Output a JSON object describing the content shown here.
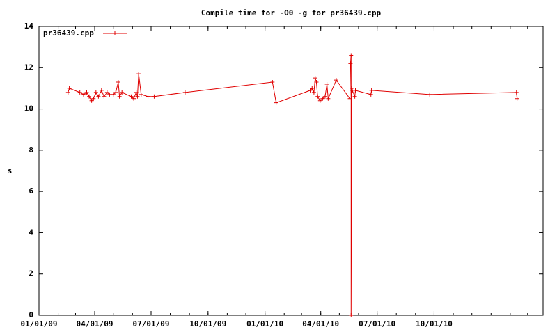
{
  "chart_data": {
    "type": "line",
    "title": "Compile time for -O0 -g for pr36439.cpp",
    "y_label": "s",
    "x": [
      "2009-02-17",
      "2009-02-19",
      "2009-03-08",
      "2009-03-14",
      "2009-03-19",
      "2009-03-23",
      "2009-03-27",
      "2009-03-30",
      "2009-04-03",
      "2009-04-07",
      "2009-04-12",
      "2009-04-16",
      "2009-04-21",
      "2009-04-25",
      "2009-05-01",
      "2009-05-05",
      "2009-05-09",
      "2009-05-11",
      "2009-05-15",
      "2009-05-30",
      "2009-06-03",
      "2009-06-07",
      "2009-06-09",
      "2009-06-11",
      "2009-06-15",
      "2009-06-26",
      "2009-07-06",
      "2009-08-25",
      "2010-01-13",
      "2010-01-19",
      "2010-03-15",
      "2010-03-18",
      "2010-03-21",
      "2010-03-23",
      "2010-03-25",
      "2010-03-27",
      "2010-03-31",
      "2010-04-04",
      "2010-04-08",
      "2010-04-11",
      "2010-04-13",
      "2010-04-26",
      "2010-05-18",
      "2010-05-19",
      "2010-05-20",
      "2010-05-20",
      "2010-05-21",
      "2010-05-22",
      "2010-05-26",
      "2010-05-27",
      "2010-06-21",
      "2010-06-22",
      "2010-09-24",
      "2011-02-11",
      "2011-02-12"
    ],
    "series": [
      {
        "name": "pr36439.cpp",
        "color": "#e00000",
        "values": [
          10.8,
          11.0,
          10.8,
          10.7,
          10.8,
          10.6,
          10.4,
          10.5,
          10.8,
          10.6,
          10.9,
          10.6,
          10.8,
          10.7,
          10.7,
          10.8,
          11.3,
          10.6,
          10.8,
          10.6,
          10.5,
          10.8,
          10.6,
          11.7,
          10.7,
          10.6,
          10.6,
          10.8,
          11.3,
          10.3,
          10.9,
          11.0,
          10.8,
          11.5,
          11.3,
          10.6,
          10.4,
          10.5,
          10.6,
          11.2,
          10.5,
          11.4,
          10.5,
          12.2,
          12.6,
          0,
          11.0,
          10.9,
          10.6,
          10.9,
          10.7,
          10.9,
          10.7,
          10.8,
          10.5
        ]
      }
    ],
    "xlim": [
      "2009-01-01",
      "2011-03-26"
    ],
    "xticks": [
      {
        "value": "2009-01-01",
        "label": "01/01/09"
      },
      {
        "value": "2009-04-01",
        "label": "04/01/09"
      },
      {
        "value": "2009-07-01",
        "label": "07/01/09"
      },
      {
        "value": "2009-10-01",
        "label": "10/01/09"
      },
      {
        "value": "2010-01-01",
        "label": "01/01/10"
      },
      {
        "value": "2010-04-01",
        "label": "04/01/10"
      },
      {
        "value": "2010-07-01",
        "label": "07/01/10"
      },
      {
        "value": "2010-10-01",
        "label": "10/01/10"
      }
    ],
    "ylim": [
      0,
      14
    ],
    "yticks": [
      0,
      2,
      4,
      6,
      8,
      10,
      12,
      14
    ],
    "legend": "top-left"
  }
}
